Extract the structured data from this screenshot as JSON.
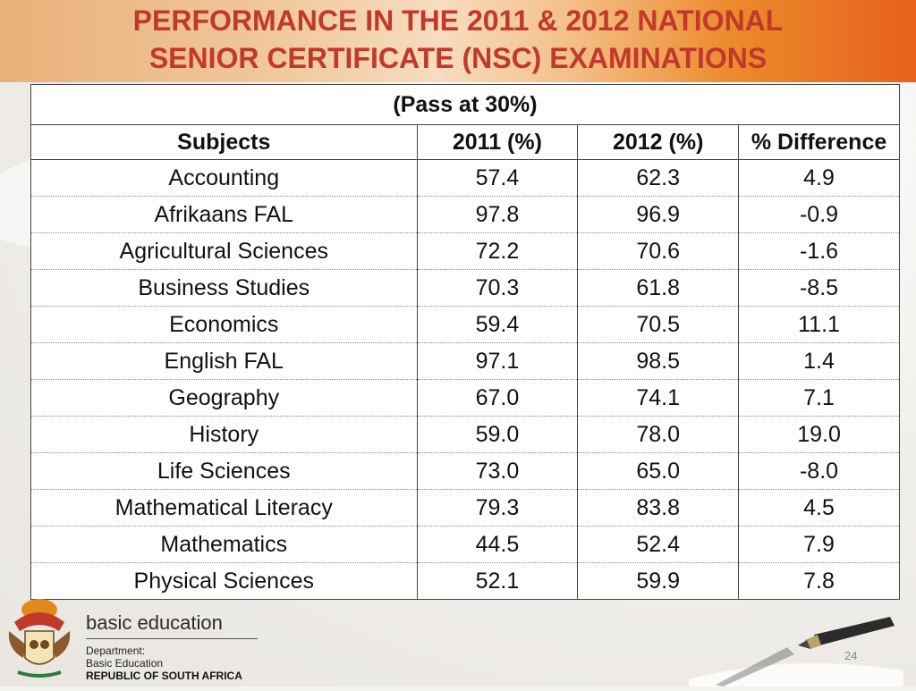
{
  "slide": {
    "title_line1": "PERFORMANCE IN THE 2011 & 2012 NATIONAL",
    "title_line2": "SENIOR CERTIFICATE (NSC) EXAMINATIONS",
    "page_number": "24"
  },
  "table": {
    "caption": "(Pass at 30%)",
    "headers": [
      "Subjects",
      "2011 (%)",
      "2012 (%)",
      "% Difference"
    ],
    "rows": [
      [
        "Accounting",
        "57.4",
        "62.3",
        "4.9"
      ],
      [
        "Afrikaans FAL",
        "97.8",
        "96.9",
        "-0.9"
      ],
      [
        "Agricultural Sciences",
        "72.2",
        "70.6",
        "-1.6"
      ],
      [
        "Business Studies",
        "70.3",
        "61.8",
        "-8.5"
      ],
      [
        "Economics",
        "59.4",
        "70.5",
        "11.1"
      ],
      [
        "English FAL",
        "97.1",
        "98.5",
        "1.4"
      ],
      [
        "Geography",
        "67.0",
        "74.1",
        "7.1"
      ],
      [
        "History",
        "59.0",
        "78.0",
        "19.0"
      ],
      [
        "Life Sciences",
        "73.0",
        "65.0",
        "-8.0"
      ],
      [
        "Mathematical Literacy",
        "79.3",
        "83.8",
        "4.5"
      ],
      [
        "Mathematics",
        "44.5",
        "52.4",
        "7.9"
      ],
      [
        "Physical Sciences",
        "52.1",
        "59.9",
        "7.8"
      ]
    ]
  },
  "footer": {
    "brand": "basic education",
    "line1": "Department:",
    "line2": "Basic Education",
    "country": "REPUBLIC OF SOUTH AFRICA",
    "crest_icon": "coat-of-arms-icon",
    "pen_icon": "fountain-pen-icon"
  },
  "colors": {
    "title": "#c0392b",
    "banner_left": "#e9b07a",
    "banner_right": "#e7611b"
  }
}
